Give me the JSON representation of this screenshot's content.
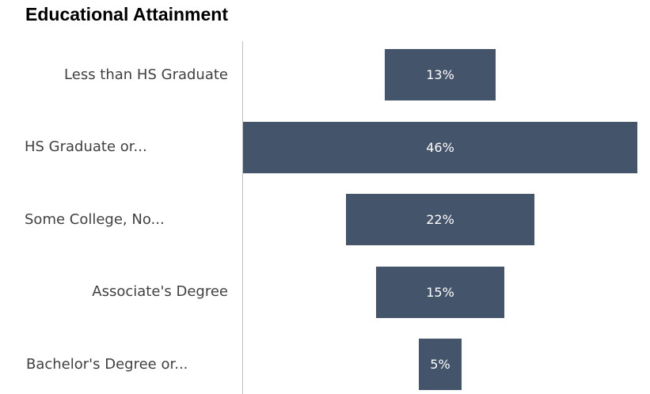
{
  "chart_data": {
    "type": "bar",
    "orientation": "horizontal-funnel",
    "title": "Educational Attainment",
    "categories": [
      "Less than HS Graduate",
      "HS Graduate or...",
      "Some College, No...",
      "Associate's Degree",
      "Bachelor's Degree or..."
    ],
    "values": [
      13,
      46,
      22,
      15,
      5
    ],
    "data_labels": [
      "13%",
      "46%",
      "22%",
      "15%",
      "5%"
    ],
    "unit": "%",
    "bar_color": "#44546a",
    "grid": false,
    "legend": "none"
  }
}
